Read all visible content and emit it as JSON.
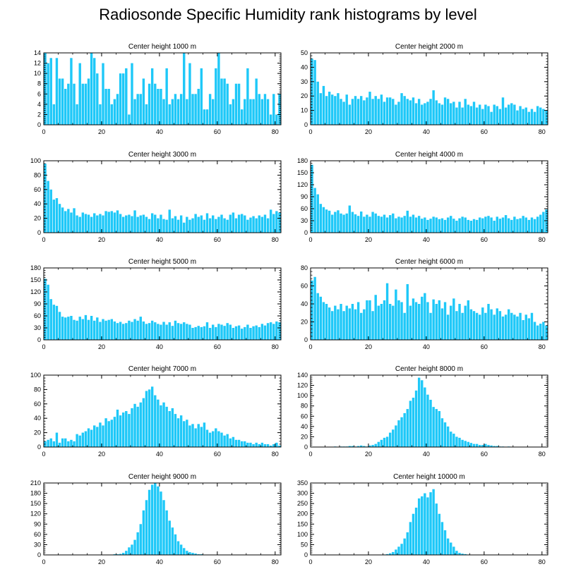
{
  "title": "Radiosonde Specific Humidity rank histograms by level",
  "colors": {
    "bar": "#1ec8f8",
    "axis": "#000000"
  },
  "chart_data": [
    {
      "type": "bar",
      "title": "Center height 1000 m",
      "xlim": [
        0,
        82
      ],
      "ylim": [
        0,
        14
      ],
      "xticks": [
        0,
        20,
        40,
        60,
        80
      ],
      "yticks": [
        0,
        2,
        4,
        6,
        8,
        10,
        12,
        14
      ],
      "values": [
        14,
        12,
        13,
        4,
        13,
        9,
        9,
        7,
        8,
        13,
        8,
        4,
        12,
        8,
        8,
        9,
        14,
        13,
        10,
        4,
        12,
        7,
        7,
        4,
        5,
        6,
        10,
        10,
        11,
        2,
        12,
        5,
        6,
        6,
        9,
        4,
        8,
        11,
        8,
        7,
        7,
        5,
        11,
        4,
        5,
        6,
        5,
        6,
        14,
        5,
        12,
        6,
        6,
        7,
        11,
        3,
        3,
        6,
        5,
        11,
        14,
        9,
        9,
        8,
        4,
        5,
        8,
        8,
        3,
        5,
        11,
        5,
        5,
        9,
        6,
        5,
        6,
        5,
        2,
        6,
        2,
        6
      ]
    },
    {
      "type": "bar",
      "title": "Center height 2000 m",
      "xlim": [
        0,
        82
      ],
      "ylim": [
        0,
        50
      ],
      "xticks": [
        0,
        20,
        40,
        60,
        80
      ],
      "yticks": [
        0,
        10,
        20,
        30,
        40,
        50
      ],
      "values": [
        46,
        45,
        30,
        22,
        27,
        20,
        23,
        21,
        20,
        22,
        18,
        16,
        21,
        14,
        18,
        20,
        18,
        20,
        17,
        19,
        23,
        18,
        20,
        18,
        21,
        16,
        19,
        19,
        18,
        14,
        16,
        22,
        20,
        18,
        17,
        19,
        15,
        18,
        14,
        15,
        16,
        18,
        24,
        17,
        15,
        14,
        19,
        18,
        15,
        16,
        12,
        16,
        12,
        18,
        14,
        13,
        16,
        12,
        14,
        11,
        14,
        13,
        9,
        14,
        13,
        11,
        19,
        12,
        14,
        15,
        14,
        10,
        13,
        11,
        12,
        9,
        11,
        9,
        13,
        12,
        11,
        10
      ]
    },
    {
      "type": "bar",
      "title": "Center height 3000 m",
      "xlim": [
        0,
        82
      ],
      "ylim": [
        0,
        100
      ],
      "xticks": [
        0,
        20,
        40,
        60,
        80
      ],
      "yticks": [
        0,
        20,
        40,
        60,
        80,
        100
      ],
      "values": [
        96,
        72,
        60,
        46,
        48,
        40,
        35,
        30,
        33,
        28,
        34,
        24,
        22,
        28,
        26,
        25,
        22,
        27,
        24,
        26,
        24,
        30,
        29,
        30,
        28,
        31,
        26,
        22,
        24,
        25,
        23,
        31,
        22,
        24,
        25,
        22,
        19,
        27,
        25,
        20,
        25,
        19,
        18,
        32,
        20,
        23,
        18,
        24,
        14,
        22,
        18,
        20,
        26,
        22,
        24,
        18,
        27,
        20,
        24,
        19,
        22,
        25,
        20,
        18,
        25,
        28,
        20,
        25,
        26,
        24,
        18,
        21,
        23,
        20,
        24,
        22,
        25,
        20,
        32,
        26,
        30,
        28
      ]
    },
    {
      "type": "bar",
      "title": "Center height 4000 m",
      "xlim": [
        0,
        82
      ],
      "ylim": [
        0,
        180
      ],
      "xticks": [
        0,
        20,
        40,
        60,
        80
      ],
      "yticks": [
        0,
        30,
        60,
        90,
        120,
        150,
        180
      ],
      "values": [
        170,
        112,
        96,
        72,
        64,
        58,
        55,
        45,
        52,
        56,
        48,
        45,
        48,
        68,
        52,
        46,
        42,
        53,
        40,
        45,
        40,
        52,
        48,
        42,
        40,
        45,
        38,
        44,
        48,
        36,
        40,
        38,
        42,
        55,
        40,
        45,
        38,
        42,
        35,
        38,
        32,
        35,
        40,
        38,
        34,
        36,
        32,
        38,
        42,
        35,
        30,
        36,
        40,
        38,
        32,
        30,
        34,
        32,
        38,
        36,
        40,
        42,
        38,
        30,
        40,
        35,
        38,
        44,
        36,
        32,
        40,
        34,
        36,
        42,
        38,
        32,
        38,
        34,
        40,
        45,
        52,
        58
      ]
    },
    {
      "type": "bar",
      "title": "Center height 5000 m",
      "xlim": [
        0,
        82
      ],
      "ylim": [
        0,
        180
      ],
      "xticks": [
        0,
        20,
        40,
        60,
        80
      ],
      "yticks": [
        0,
        30,
        60,
        90,
        120,
        150,
        180
      ],
      "values": [
        153,
        138,
        102,
        88,
        85,
        70,
        58,
        56,
        58,
        60,
        50,
        48,
        58,
        52,
        62,
        50,
        60,
        48,
        56,
        45,
        52,
        48,
        50,
        52,
        46,
        42,
        45,
        40,
        42,
        48,
        45,
        52,
        48,
        58,
        46,
        40,
        42,
        48,
        44,
        40,
        38,
        45,
        38,
        44,
        35,
        48,
        42,
        40,
        44,
        40,
        38,
        30,
        32,
        35,
        32,
        34,
        44,
        30,
        38,
        32,
        40,
        38,
        35,
        42,
        38,
        30,
        34,
        36,
        28,
        32,
        38,
        30,
        34,
        36,
        32,
        40,
        36,
        42,
        44,
        40,
        46,
        44
      ]
    },
    {
      "type": "bar",
      "title": "Center height 6000 m",
      "xlim": [
        0,
        82
      ],
      "ylim": [
        0,
        80
      ],
      "xticks": [
        0,
        20,
        40,
        60,
        80
      ],
      "yticks": [
        0,
        20,
        40,
        60,
        80
      ],
      "values": [
        66,
        70,
        52,
        48,
        42,
        40,
        36,
        32,
        38,
        34,
        40,
        32,
        38,
        35,
        40,
        34,
        42,
        30,
        34,
        44,
        44,
        32,
        50,
        38,
        40,
        44,
        63,
        40,
        38,
        56,
        44,
        42,
        30,
        62,
        38,
        46,
        42,
        40,
        48,
        52,
        42,
        30,
        45,
        40,
        44,
        35,
        42,
        28,
        38,
        46,
        32,
        40,
        30,
        38,
        44,
        34,
        32,
        30,
        28,
        36,
        30,
        40,
        34,
        28,
        35,
        32,
        26,
        28,
        34,
        30,
        28,
        26,
        30,
        22,
        28,
        24,
        30,
        20,
        16,
        18,
        20,
        16
      ]
    },
    {
      "type": "bar",
      "title": "Center height 7000 m",
      "xlim": [
        0,
        82
      ],
      "ylim": [
        0,
        100
      ],
      "xticks": [
        0,
        20,
        40,
        60,
        80
      ],
      "yticks": [
        0,
        20,
        40,
        60,
        80,
        100
      ],
      "values": [
        8,
        10,
        12,
        8,
        20,
        6,
        12,
        12,
        8,
        10,
        8,
        18,
        16,
        20,
        22,
        26,
        24,
        30,
        28,
        34,
        30,
        40,
        36,
        38,
        42,
        52,
        44,
        48,
        50,
        46,
        54,
        60,
        56,
        62,
        68,
        78,
        80,
        84,
        72,
        66,
        58,
        62,
        56,
        50,
        54,
        46,
        40,
        44,
        36,
        38,
        30,
        32,
        26,
        32,
        28,
        34,
        24,
        20,
        22,
        26,
        22,
        20,
        16,
        18,
        12,
        14,
        10,
        10,
        8,
        8,
        6,
        6,
        4,
        6,
        4,
        6,
        4,
        4,
        2,
        4,
        6,
        2
      ]
    },
    {
      "type": "bar",
      "title": "Center height 8000 m",
      "xlim": [
        0,
        82
      ],
      "ylim": [
        0,
        140
      ],
      "xticks": [
        0,
        20,
        40,
        60,
        80
      ],
      "yticks": [
        0,
        20,
        40,
        60,
        80,
        100,
        120,
        140
      ],
      "values": [
        0,
        0,
        0,
        0,
        0,
        0,
        0,
        0,
        1,
        0,
        1,
        1,
        1,
        2,
        2,
        1,
        2,
        3,
        2,
        1,
        3,
        4,
        6,
        10,
        14,
        18,
        20,
        28,
        34,
        42,
        52,
        58,
        66,
        74,
        90,
        96,
        110,
        135,
        130,
        116,
        102,
        92,
        78,
        74,
        70,
        56,
        48,
        40,
        30,
        26,
        20,
        18,
        14,
        12,
        10,
        8,
        6,
        6,
        4,
        4,
        6,
        4,
        3,
        2,
        2,
        1,
        1,
        0,
        1,
        0,
        0,
        0,
        0,
        0,
        0,
        0,
        0,
        0,
        0,
        0,
        0,
        0
      ]
    },
    {
      "type": "bar",
      "title": "Center height 9000 m",
      "xlim": [
        0,
        82
      ],
      "ylim": [
        0,
        210
      ],
      "xticks": [
        0,
        20,
        40,
        60,
        80
      ],
      "yticks": [
        0,
        30,
        60,
        90,
        120,
        150,
        180,
        210
      ],
      "values": [
        0,
        0,
        0,
        0,
        0,
        0,
        0,
        0,
        0,
        0,
        0,
        0,
        0,
        0,
        0,
        0,
        0,
        0,
        0,
        0,
        0,
        0,
        1,
        1,
        2,
        2,
        3,
        6,
        12,
        22,
        30,
        44,
        66,
        90,
        130,
        160,
        190,
        205,
        210,
        200,
        185,
        160,
        130,
        100,
        80,
        60,
        40,
        30,
        20,
        12,
        8,
        6,
        4,
        2,
        2,
        1,
        1,
        0,
        0,
        0,
        1,
        0,
        0,
        0,
        0,
        0,
        0,
        0,
        0,
        0,
        0,
        0,
        0,
        0,
        0,
        0,
        0,
        0,
        0,
        0,
        0,
        0
      ]
    },
    {
      "type": "bar",
      "title": "Center height 10000 m",
      "xlim": [
        0,
        82
      ],
      "ylim": [
        0,
        350
      ],
      "xticks": [
        0,
        20,
        40,
        60,
        80
      ],
      "yticks": [
        0,
        50,
        100,
        150,
        200,
        250,
        300,
        350
      ],
      "values": [
        0,
        0,
        0,
        0,
        0,
        0,
        0,
        0,
        0,
        0,
        0,
        0,
        0,
        0,
        0,
        0,
        0,
        0,
        0,
        0,
        0,
        0,
        0,
        0,
        0,
        2,
        4,
        8,
        14,
        26,
        40,
        54,
        80,
        110,
        160,
        200,
        230,
        275,
        285,
        300,
        280,
        305,
        320,
        250,
        200,
        160,
        120,
        80,
        60,
        40,
        20,
        10,
        6,
        4,
        2,
        1,
        1,
        0,
        0,
        0,
        0,
        0,
        0,
        0,
        0,
        0,
        0,
        0,
        0,
        0,
        0,
        0,
        0,
        0,
        0,
        0,
        0,
        0,
        0,
        0,
        0,
        0
      ]
    }
  ]
}
